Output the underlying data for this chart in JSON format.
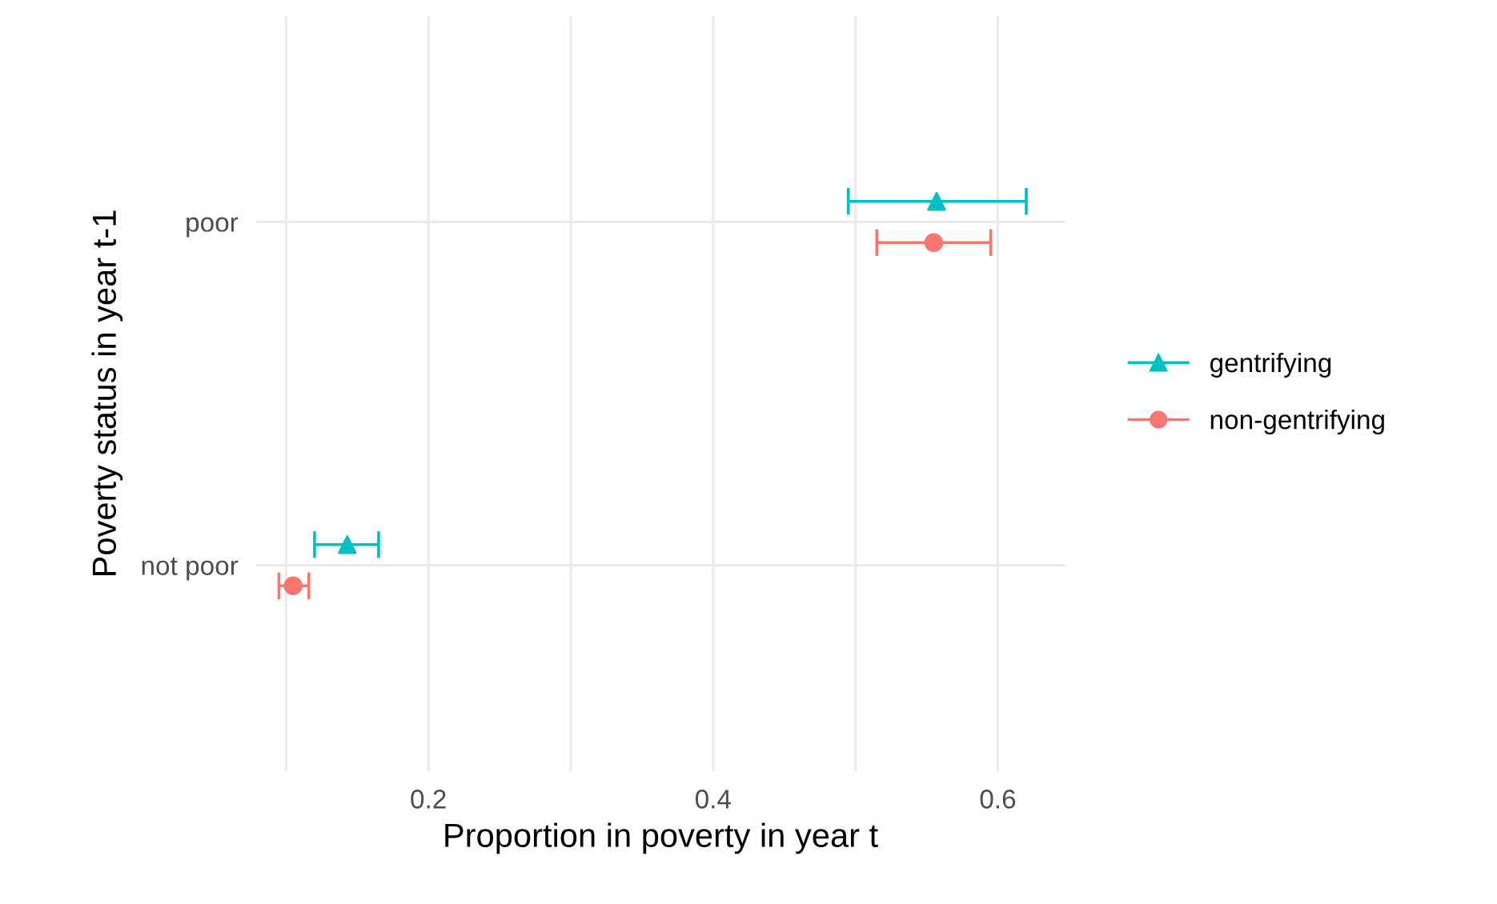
{
  "chart_data": {
    "type": "scatter",
    "orientation": "horizontal",
    "xlabel": "Proportion in poverty in year t",
    "ylabel": "Poverty status in year t-1",
    "categories": [
      "poor",
      "not poor"
    ],
    "series": [
      {
        "name": "gentrifying",
        "color": "#00bfc4",
        "marker": "triangle",
        "values": [
          0.557,
          0.143
        ],
        "errors": [
          [
            0.495,
            0.62
          ],
          [
            0.12,
            0.165
          ]
        ]
      },
      {
        "name": "non-gentrifying",
        "color": "#f8766d",
        "marker": "circle",
        "values": [
          0.555,
          0.105
        ],
        "errors": [
          [
            0.515,
            0.595
          ],
          [
            0.095,
            0.116
          ]
        ]
      }
    ],
    "xlim": [
      0.079,
      0.647
    ],
    "xticks": [
      {
        "value": 0.1,
        "label": null
      },
      0.2,
      {
        "value": 0.3,
        "label": null
      },
      0.4,
      {
        "value": 0.5,
        "label": null
      },
      0.6
    ],
    "grid": true,
    "legend": "right"
  }
}
